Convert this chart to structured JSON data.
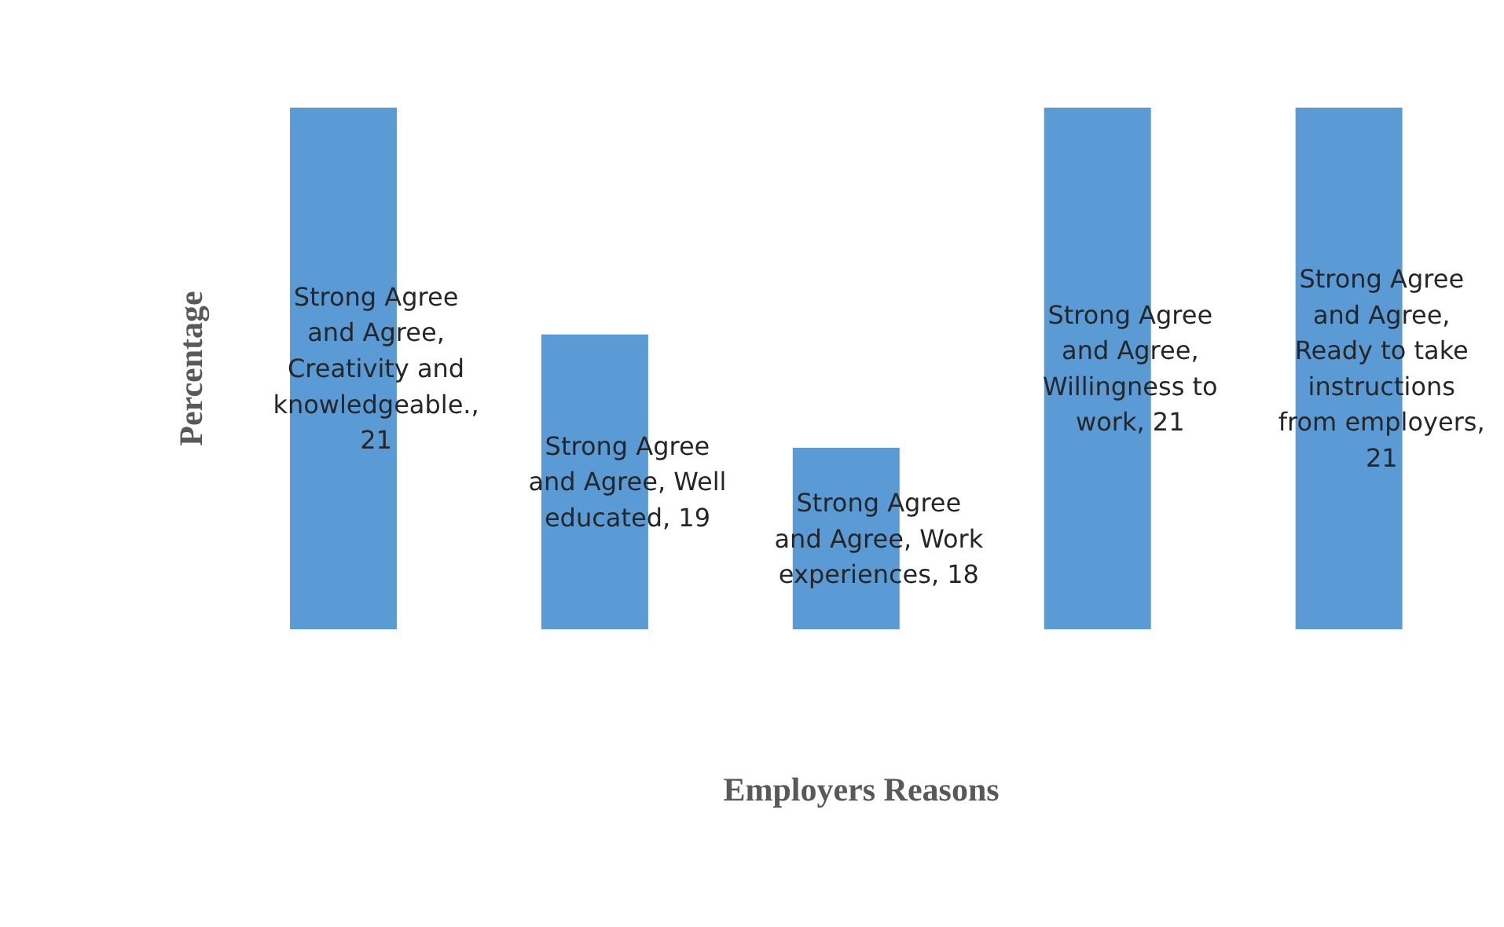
{
  "chart_data": {
    "type": "bar",
    "xlabel": "Employers Reasons",
    "ylabel": "Percentage",
    "categories": [
      null,
      null,
      null,
      null,
      null
    ],
    "series": [
      {
        "color": "#5b9bd5",
        "values": [
          21,
          19,
          18,
          21,
          21
        ],
        "value_labels": [
          "Strong Agree and Agree, Creativity and knowledgeable., 21",
          "Strong Agree and Agree, Well educated, 19",
          "Strong Agree and Agree, Work experiences, 18",
          "Strong Agree and Agree, Willingness to work, 21",
          "Strong Agree and Agree, Ready to take instructions from employers, 21"
        ]
      }
    ],
    "ylim": [
      16.4,
      21
    ]
  }
}
